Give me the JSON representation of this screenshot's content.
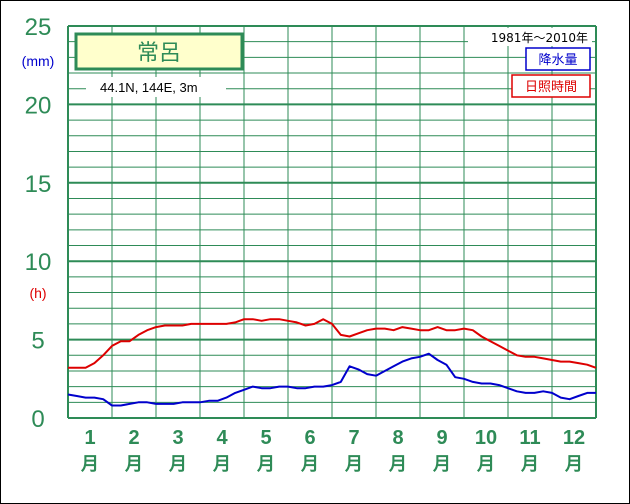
{
  "station": {
    "name": "常呂",
    "location": "44.1N,  144E,  3m"
  },
  "period": "1981年～2010年",
  "colors": {
    "grid": "#2e8b57",
    "axis_text": "#2e8b57",
    "precip": "#0000cc",
    "sunshine": "#dd0000",
    "title_box_bg": "#ffffcc",
    "title_box_border": "#2e8b57"
  },
  "chart_data": {
    "type": "line",
    "x_categories": [
      "1",
      "2",
      "3",
      "4",
      "5",
      "6",
      "7",
      "8",
      "9",
      "10",
      "11",
      "12"
    ],
    "x_suffix": "月",
    "y_ticks": [
      "0",
      "5",
      "10",
      "15",
      "20",
      "25"
    ],
    "ylim": [
      0,
      25
    ],
    "grid": true,
    "y_units": {
      "precip": "(mm)",
      "sunshine": "(h)"
    },
    "legend": [
      "降水量",
      "日照時間"
    ],
    "legend_position": "top-right",
    "series": [
      {
        "name": "降水量",
        "x": [
          0.0,
          0.2,
          0.4,
          0.6,
          0.8,
          1.0,
          1.2,
          1.4,
          1.6,
          1.8,
          2.0,
          2.2,
          2.4,
          2.6,
          2.8,
          3.0,
          3.2,
          3.4,
          3.6,
          3.8,
          4.0,
          4.2,
          4.4,
          4.6,
          4.8,
          5.0,
          5.2,
          5.4,
          5.6,
          5.8,
          6.0,
          6.2,
          6.4,
          6.6,
          6.8,
          7.0,
          7.2,
          7.4,
          7.6,
          7.8,
          8.0,
          8.2,
          8.4,
          8.6,
          8.8,
          9.0,
          9.2,
          9.4,
          9.6,
          9.8,
          10.0,
          10.2,
          10.4,
          10.6,
          10.8,
          11.0,
          11.2,
          11.4,
          11.6,
          11.8,
          12.0
        ],
        "values": [
          1.5,
          1.4,
          1.3,
          1.3,
          1.2,
          0.8,
          0.8,
          0.9,
          1.0,
          1.0,
          0.9,
          0.9,
          0.9,
          1.0,
          1.0,
          1.0,
          1.1,
          1.1,
          1.3,
          1.6,
          1.8,
          2.0,
          1.9,
          1.9,
          2.0,
          2.0,
          1.9,
          1.9,
          2.0,
          2.0,
          2.1,
          2.3,
          3.3,
          3.1,
          2.8,
          2.7,
          3.0,
          3.3,
          3.6,
          3.8,
          3.9,
          4.1,
          3.7,
          3.4,
          2.6,
          2.5,
          2.3,
          2.2,
          2.2,
          2.1,
          1.9,
          1.7,
          1.6,
          1.6,
          1.7,
          1.6,
          1.3,
          1.2,
          1.4,
          1.6,
          1.6
        ]
      },
      {
        "name": "日照時間",
        "x": [
          0.0,
          0.2,
          0.4,
          0.6,
          0.8,
          1.0,
          1.2,
          1.4,
          1.6,
          1.8,
          2.0,
          2.2,
          2.4,
          2.6,
          2.8,
          3.0,
          3.2,
          3.4,
          3.6,
          3.8,
          4.0,
          4.2,
          4.4,
          4.6,
          4.8,
          5.0,
          5.2,
          5.4,
          5.6,
          5.8,
          6.0,
          6.2,
          6.4,
          6.6,
          6.8,
          7.0,
          7.2,
          7.4,
          7.6,
          7.8,
          8.0,
          8.2,
          8.4,
          8.6,
          8.8,
          9.0,
          9.2,
          9.4,
          9.6,
          9.8,
          10.0,
          10.2,
          10.4,
          10.6,
          10.8,
          11.0,
          11.2,
          11.4,
          11.6,
          11.8,
          12.0
        ],
        "values": [
          3.2,
          3.2,
          3.2,
          3.5,
          4.0,
          4.6,
          4.9,
          4.9,
          5.3,
          5.6,
          5.8,
          5.9,
          5.9,
          5.9,
          6.0,
          6.0,
          6.0,
          6.0,
          6.0,
          6.1,
          6.3,
          6.3,
          6.2,
          6.3,
          6.3,
          6.2,
          6.1,
          5.9,
          6.0,
          6.3,
          6.0,
          5.3,
          5.2,
          5.4,
          5.6,
          5.7,
          5.7,
          5.6,
          5.8,
          5.7,
          5.6,
          5.6,
          5.8,
          5.6,
          5.6,
          5.7,
          5.6,
          5.2,
          4.9,
          4.6,
          4.3,
          4.0,
          3.9,
          3.9,
          3.8,
          3.7,
          3.6,
          3.6,
          3.5,
          3.4,
          3.2
        ]
      }
    ]
  }
}
